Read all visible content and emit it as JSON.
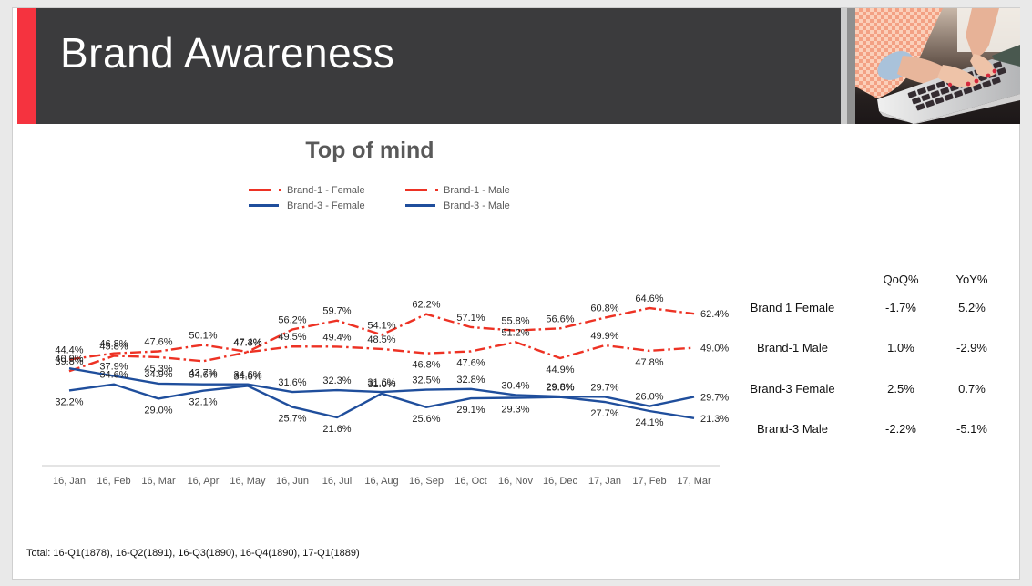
{
  "page": {
    "title": "Brand Awareness"
  },
  "header_image": "photo-hands-typing-on-laptop",
  "colors": {
    "accent_red": "#F5333F",
    "banner_gray": "#3B3B3D",
    "brand1_red": "#ED3224",
    "brand3_blue": "#1F4E9C"
  },
  "chart_data": {
    "type": "line",
    "title": "Top of mind",
    "value_suffix": "%",
    "gridlines": false,
    "legend_position": "top",
    "ylim": [
      18,
      68
    ],
    "categories": [
      "16, Jan",
      "16, Feb",
      "16, Mar",
      "16, Apr",
      "16, May",
      "16, Jun",
      "16, Jul",
      "16, Aug",
      "16, Sep",
      "16, Oct",
      "16, Nov",
      "16, Dec",
      "17, Jan",
      "17, Feb",
      "17, Mar"
    ],
    "series": [
      {
        "name": "Brand-1 - Female",
        "color": "#ED3224",
        "style": "dash-dot",
        "values": [
          44.4,
          46.8,
          47.6,
          50.1,
          47.4,
          56.2,
          59.7,
          54.1,
          62.2,
          57.1,
          55.8,
          56.6,
          60.8,
          64.6,
          62.4
        ]
      },
      {
        "name": "Brand-1 - Male",
        "color": "#ED3224",
        "style": "dash-dot",
        "values": [
          39.8,
          45.8,
          45.3,
          43.7,
          47.3,
          49.5,
          49.4,
          48.5,
          46.8,
          47.6,
          51.2,
          44.9,
          49.9,
          47.8,
          49.0
        ]
      },
      {
        "name": "Brand-3 - Female",
        "color": "#1F4E9C",
        "style": "solid",
        "values": [
          40.9,
          37.9,
          34.9,
          34.6,
          34.6,
          31.6,
          32.3,
          31.6,
          32.5,
          32.8,
          30.4,
          29.8,
          29.7,
          26.0,
          29.7
        ]
      },
      {
        "name": "Brand-3 - Male",
        "color": "#1F4E9C",
        "style": "solid",
        "values": [
          32.2,
          34.6,
          29.0,
          32.1,
          34.0,
          25.7,
          21.6,
          31.0,
          25.6,
          29.1,
          29.3,
          29.6,
          27.7,
          24.1,
          21.3
        ]
      }
    ]
  },
  "table": {
    "qoq_header": "QoQ%",
    "yoy_header": "YoY%",
    "rows": [
      {
        "name": "Brand 1 Female",
        "qoq": "-1.7%",
        "yoy": "5.2%"
      },
      {
        "name": "Brand-1 Male",
        "qoq": "1.0%",
        "yoy": "-2.9%"
      },
      {
        "name": "Brand-3 Female",
        "qoq": "2.5%",
        "yoy": "0.7%"
      },
      {
        "name": "Brand-3 Male",
        "qoq": "-2.2%",
        "yoy": "-5.1%"
      }
    ]
  },
  "footnote": {
    "text": "Total: 16-Q1(1878), 16-Q2(1891), 16-Q3(1890), 16-Q4(1890), 17-Q1(1889)"
  }
}
